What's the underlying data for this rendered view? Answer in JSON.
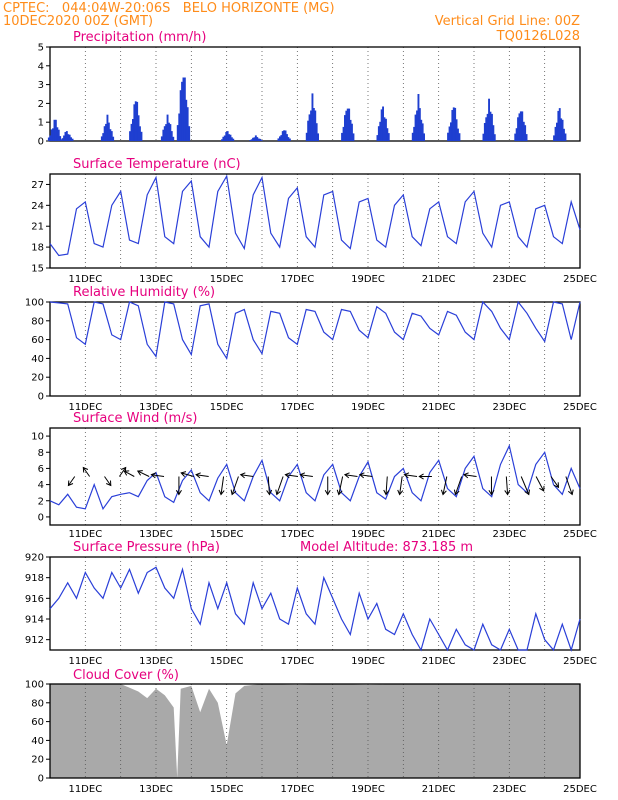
{
  "header": {
    "left1": "CPTEC:   044:04W-20:06S   BELO HORIZONTE (MG)",
    "left2": "10DEC2020 00Z (GMT)",
    "right1": "Vertical Grid Line: 00Z",
    "right2": "TQ0126L028"
  },
  "colors": {
    "header": "#ff8c1a",
    "title": "#e6007e",
    "series": "#2a3fd8",
    "cloud": "#a9a9a9",
    "bars": "#1f3fd0"
  },
  "x_ticks": [
    "11DEC",
    "13DEC",
    "15DEC",
    "17DEC",
    "19DEC",
    "21DEC",
    "23DEC",
    "25DEC"
  ],
  "chart_data": [
    {
      "type": "bar",
      "title": "Precipitation (mm/h)",
      "x_unit": "days since 10DEC2020 00Z",
      "xlim": [
        0,
        15
      ],
      "ylim": [
        0,
        5
      ],
      "yticks": [
        0,
        1,
        2,
        3,
        4,
        5
      ],
      "events": [
        {
          "x": 0.1,
          "peak": 1.5
        },
        {
          "x": 0.45,
          "peak": 0.6
        },
        {
          "x": 1.6,
          "peak": 1.4
        },
        {
          "x": 2.4,
          "peak": 2.6
        },
        {
          "x": 3.3,
          "peak": 1.5
        },
        {
          "x": 3.75,
          "peak": 4.5
        },
        {
          "x": 5.0,
          "peak": 0.6
        },
        {
          "x": 5.8,
          "peak": 0.3
        },
        {
          "x": 6.6,
          "peak": 0.7
        },
        {
          "x": 7.4,
          "peak": 2.7
        },
        {
          "x": 8.4,
          "peak": 2.3
        },
        {
          "x": 9.4,
          "peak": 2.1
        },
        {
          "x": 10.4,
          "peak": 2.5
        },
        {
          "x": 11.4,
          "peak": 2.2
        },
        {
          "x": 12.4,
          "peak": 2.4
        },
        {
          "x": 13.3,
          "peak": 2.1
        },
        {
          "x": 14.4,
          "peak": 2.0
        }
      ]
    },
    {
      "type": "line",
      "title": "Surface Temperature (nC)",
      "x_unit": "days since 10DEC2020 00Z",
      "xlim": [
        0,
        15
      ],
      "ylim": [
        15,
        28.5
      ],
      "yticks": [
        15,
        18,
        21,
        24,
        27
      ],
      "x": [
        0,
        0.25,
        0.5,
        0.75,
        1,
        1.25,
        1.5,
        1.75,
        2,
        2.25,
        2.5,
        2.75,
        3,
        3.25,
        3.5,
        3.75,
        4,
        4.25,
        4.5,
        4.75,
        5,
        5.25,
        5.5,
        5.75,
        6,
        6.25,
        6.5,
        6.75,
        7,
        7.25,
        7.5,
        7.75,
        8,
        8.25,
        8.5,
        8.75,
        9,
        9.25,
        9.5,
        9.75,
        10,
        10.25,
        10.5,
        10.75,
        11,
        11.25,
        11.5,
        11.75,
        12,
        12.25,
        12.5,
        12.75,
        13,
        13.25,
        13.5,
        13.75,
        14,
        14.25,
        14.5,
        14.75,
        15
      ],
      "y": [
        18.5,
        16.8,
        17.0,
        23.5,
        24.5,
        18.5,
        18.0,
        24.0,
        26.0,
        19.0,
        18.5,
        25.5,
        28.0,
        19.5,
        18.5,
        26.0,
        27.5,
        19.5,
        18.0,
        26.0,
        28.2,
        20.0,
        17.8,
        25.5,
        28.0,
        20.0,
        18.0,
        25.0,
        26.5,
        19.5,
        18.0,
        25.5,
        26.0,
        19.0,
        17.8,
        24.5,
        25.0,
        19.0,
        18.0,
        24.0,
        25.5,
        19.5,
        18.2,
        23.5,
        24.5,
        19.5,
        18.5,
        24.5,
        26.0,
        20.0,
        18.0,
        24.0,
        24.5,
        19.5,
        18.0,
        23.5,
        24.0,
        19.5,
        18.5,
        24.5,
        20.5
      ]
    },
    {
      "type": "line",
      "title": "Relative Humidity (%)",
      "x_unit": "days since 10DEC2020 00Z",
      "xlim": [
        0,
        15
      ],
      "ylim": [
        0,
        100
      ],
      "yticks": [
        0,
        20,
        40,
        60,
        80,
        100
      ],
      "x": [
        0,
        0.25,
        0.5,
        0.75,
        1,
        1.25,
        1.5,
        1.75,
        2,
        2.25,
        2.5,
        2.75,
        3,
        3.25,
        3.5,
        3.75,
        4,
        4.25,
        4.5,
        4.75,
        5,
        5.25,
        5.5,
        5.75,
        6,
        6.25,
        6.5,
        6.75,
        7,
        7.25,
        7.5,
        7.75,
        8,
        8.25,
        8.5,
        8.75,
        9,
        9.25,
        9.5,
        9.75,
        10,
        10.25,
        10.5,
        10.75,
        11,
        11.25,
        11.5,
        11.75,
        12,
        12.25,
        12.5,
        12.75,
        13,
        13.25,
        13.5,
        13.75,
        14,
        14.25,
        14.5,
        14.75,
        15
      ],
      "y": [
        100,
        99,
        98,
        62,
        55,
        100,
        98,
        65,
        60,
        100,
        96,
        55,
        42,
        100,
        98,
        60,
        44,
        96,
        98,
        55,
        40,
        88,
        92,
        60,
        45,
        90,
        88,
        62,
        55,
        92,
        90,
        68,
        60,
        92,
        90,
        70,
        62,
        95,
        88,
        68,
        60,
        88,
        85,
        72,
        65,
        90,
        86,
        68,
        60,
        100,
        90,
        72,
        60,
        100,
        88,
        72,
        58,
        100,
        98,
        60,
        100
      ]
    },
    {
      "type": "line",
      "title": "Surface Wind (m/s)",
      "x_unit": "days since 10DEC2020 00Z",
      "xlim": [
        0,
        15
      ],
      "ylim": [
        -1,
        11
      ],
      "yticks": [
        0,
        2,
        4,
        6,
        8,
        10
      ],
      "x": [
        0,
        0.25,
        0.5,
        0.75,
        1,
        1.25,
        1.5,
        1.75,
        2,
        2.25,
        2.5,
        2.75,
        3,
        3.25,
        3.5,
        3.75,
        4,
        4.25,
        4.5,
        4.75,
        5,
        5.25,
        5.5,
        5.75,
        6,
        6.25,
        6.5,
        6.75,
        7,
        7.25,
        7.5,
        7.75,
        8,
        8.25,
        8.5,
        8.75,
        9,
        9.25,
        9.5,
        9.75,
        10,
        10.25,
        10.5,
        10.75,
        11,
        11.25,
        11.5,
        11.75,
        12,
        12.25,
        12.5,
        12.75,
        13,
        13.25,
        13.5,
        13.75,
        14,
        14.25,
        14.5,
        14.75,
        15
      ],
      "y": [
        2.0,
        1.5,
        2.8,
        1.2,
        1.0,
        4.0,
        1.0,
        2.5,
        2.8,
        3.0,
        2.5,
        4.5,
        5.5,
        2.5,
        1.8,
        4.5,
        5.8,
        3.0,
        2.0,
        4.8,
        6.5,
        3.0,
        2.0,
        5.0,
        7.0,
        3.0,
        2.0,
        5.0,
        6.5,
        3.0,
        2.0,
        5.2,
        6.5,
        3.0,
        2.0,
        5.0,
        6.8,
        3.0,
        2.2,
        5.0,
        6.0,
        3.0,
        2.0,
        5.5,
        7.0,
        3.5,
        2.5,
        6.0,
        7.5,
        3.5,
        2.5,
        6.5,
        8.8,
        4.0,
        3.0,
        6.5,
        8.0,
        4.0,
        2.8,
        6.0,
        3.5
      ],
      "vectors_u": [
        -0.5,
        -0.5,
        0.5,
        0.5,
        -0.8,
        -0.9,
        -1,
        0,
        -1,
        -1,
        -0.2,
        -0.5,
        -1,
        0.1,
        -0.5,
        -1,
        -1,
        0,
        -0.3,
        -1,
        -1,
        -0.1,
        -0.2,
        -1,
        -1,
        -0.3,
        -0.5,
        -1,
        0,
        0.1,
        0.6,
        0.6,
        0.6,
        0.5
      ],
      "vectors_v": [
        -0.5,
        0.5,
        -0.5,
        0.5,
        0.3,
        0.3,
        0.1,
        -1,
        0.2,
        0.1,
        -1,
        -1,
        0.1,
        -1,
        -1,
        0.1,
        0.1,
        -1,
        -1,
        0.1,
        0.1,
        -1,
        -1,
        0.1,
        0,
        -1,
        -1,
        0.1,
        -1,
        -1,
        -1,
        -0.8,
        -0.6,
        -1
      ]
    },
    {
      "type": "line",
      "title": "Surface Pressure (hPa)",
      "annotation": "Model Altitude: 873.185 m",
      "x_unit": "days since 10DEC2020 00Z",
      "xlim": [
        0,
        15
      ],
      "ylim": [
        911,
        920
      ],
      "yticks": [
        912,
        914,
        916,
        918,
        920
      ],
      "x": [
        0,
        0.25,
        0.5,
        0.75,
        1,
        1.25,
        1.5,
        1.75,
        2,
        2.25,
        2.5,
        2.75,
        3,
        3.25,
        3.5,
        3.75,
        4,
        4.25,
        4.5,
        4.75,
        5,
        5.25,
        5.5,
        5.75,
        6,
        6.25,
        6.5,
        6.75,
        7,
        7.25,
        7.5,
        7.75,
        8,
        8.25,
        8.5,
        8.75,
        9,
        9.25,
        9.5,
        9.75,
        10,
        10.25,
        10.5,
        10.75,
        11,
        11.25,
        11.5,
        11.75,
        12,
        12.25,
        12.5,
        12.75,
        13,
        13.25,
        13.5,
        13.75,
        14,
        14.25,
        14.5,
        14.75,
        15
      ],
      "y": [
        915.0,
        916.0,
        917.5,
        916.0,
        918.5,
        917.0,
        916.0,
        918.5,
        917.0,
        918.8,
        916.5,
        918.5,
        919.0,
        917.0,
        916.0,
        918.8,
        915.0,
        913.5,
        917.5,
        915.0,
        917.5,
        914.5,
        913.5,
        917.5,
        915.0,
        916.5,
        914.0,
        913.5,
        917.0,
        914.5,
        913.5,
        918.0,
        916.0,
        914.0,
        912.5,
        916.5,
        914.0,
        915.5,
        913.0,
        912.5,
        914.5,
        912.5,
        911.0,
        914.0,
        912.5,
        910.5,
        913.0,
        911.5,
        910.0,
        913.5,
        911.5,
        910.0,
        913.0,
        911.0,
        910.5,
        914.5,
        912.0,
        910.0,
        913.5,
        911.0,
        914.0
      ]
    },
    {
      "type": "area",
      "title": "Cloud Cover (%)",
      "x_unit": "days since 10DEC2020 00Z",
      "xlim": [
        0,
        15
      ],
      "ylim": [
        0,
        100
      ],
      "yticks": [
        0,
        20,
        40,
        60,
        80,
        100
      ],
      "x": [
        0,
        0.5,
        1,
        1.5,
        2,
        2.5,
        2.75,
        3,
        3.25,
        3.5,
        3.6,
        3.7,
        4,
        4.25,
        4.5,
        4.75,
        5,
        5.25,
        5.5,
        6,
        7,
        8,
        9,
        10,
        11,
        12,
        13,
        14,
        15
      ],
      "y": [
        100,
        100,
        100,
        100,
        100,
        92,
        85,
        95,
        88,
        75,
        0,
        95,
        98,
        70,
        95,
        80,
        35,
        90,
        98,
        100,
        99,
        100,
        99,
        100,
        100,
        100,
        100,
        100,
        100
      ]
    }
  ]
}
